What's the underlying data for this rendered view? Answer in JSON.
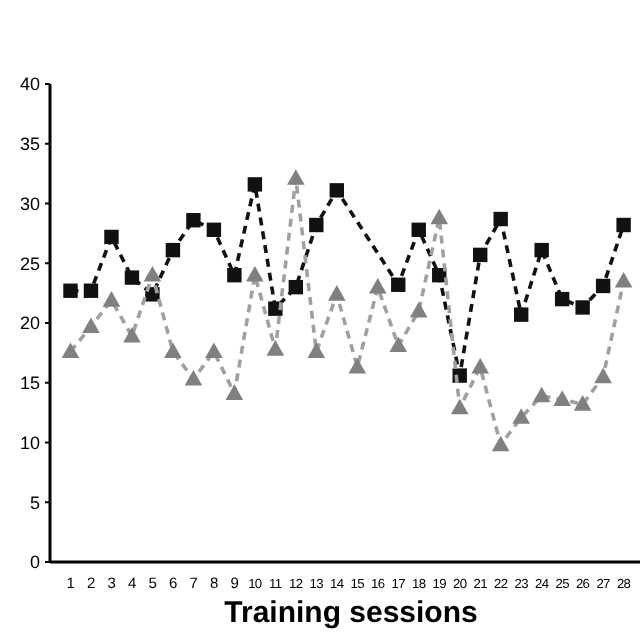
{
  "chart_data": {
    "type": "line",
    "xlabel": "Training sessions",
    "xlim": [
      0,
      28.8
    ],
    "xticks": [
      1,
      2,
      3,
      4,
      5,
      6,
      7,
      8,
      9,
      10,
      11,
      12,
      13,
      14,
      15,
      16,
      17,
      18,
      19,
      20,
      21,
      22,
      23,
      24,
      25,
      26,
      27,
      28
    ],
    "ylim": [
      0,
      40
    ],
    "yticks": [
      0,
      5,
      10,
      15,
      20,
      25,
      30,
      35,
      40
    ],
    "grid": false,
    "line_style": "dashed",
    "series": [
      {
        "color": "#111111",
        "marker": "square",
        "x": [
          1,
          2,
          3,
          4,
          5,
          6,
          7,
          8,
          9,
          10,
          11,
          12,
          13,
          14,
          17,
          18,
          19,
          20,
          21,
          22,
          23,
          24,
          25,
          26,
          27,
          28
        ],
        "values": [
          22.7,
          22.7,
          27.2,
          23.8,
          22.4,
          26.1,
          28.6,
          27.8,
          24.0,
          31.6,
          21.2,
          23.0,
          28.2,
          31.1,
          23.2,
          27.8,
          24.0,
          15.6,
          25.7,
          28.7,
          20.7,
          26.1,
          22.0,
          21.3,
          23.1,
          28.2
        ]
      },
      {
        "color": "#808080",
        "marker": "triangle",
        "x": [
          1,
          2,
          3,
          4,
          5,
          6,
          7,
          8,
          9,
          10,
          11,
          12,
          13,
          14,
          15,
          16,
          17,
          18,
          19,
          20,
          21,
          22,
          23,
          24,
          25,
          26,
          27,
          28
        ],
        "values": [
          17.6,
          19.7,
          21.9,
          18.9,
          24.0,
          17.6,
          15.3,
          17.6,
          14.1,
          24.0,
          17.8,
          32.1,
          17.6,
          22.4,
          16.3,
          23.0,
          18.1,
          21.0,
          28.8,
          12.9,
          16.3,
          9.8,
          12.1,
          13.9,
          13.6,
          13.2,
          15.5,
          23.5
        ]
      }
    ]
  }
}
